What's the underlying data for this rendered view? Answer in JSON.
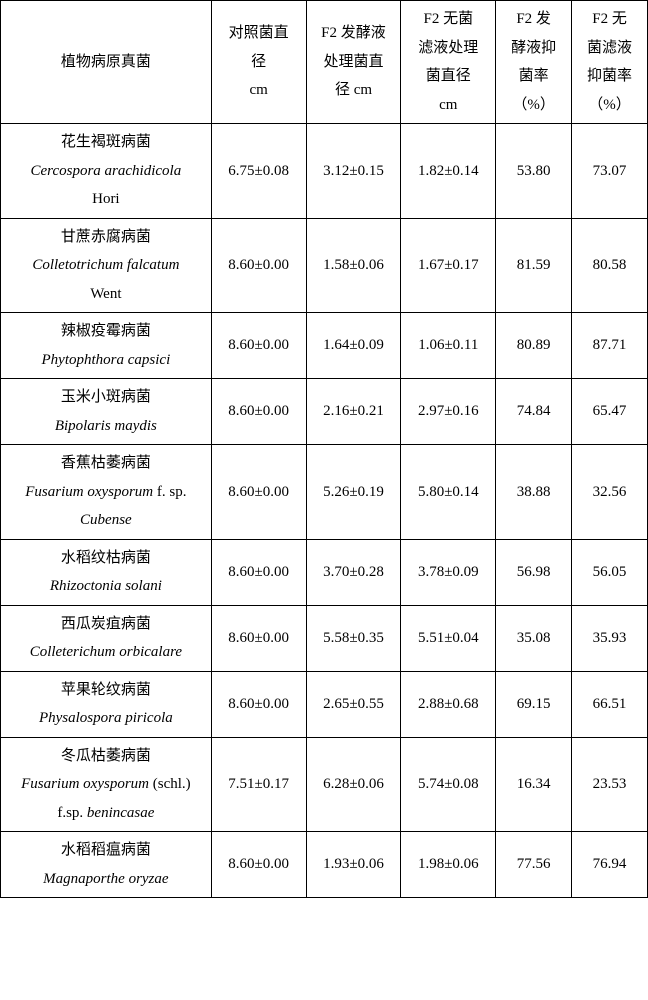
{
  "headers": {
    "name": "植物病原真菌",
    "col1_l1": "对照菌直",
    "col1_l2": "径",
    "col1_l3": "cm",
    "col2_l1": "F2 发酵液",
    "col2_l2": "处理菌直",
    "col2_l3": "径 cm",
    "col3_l1": "F2 无菌",
    "col3_l2": "滤液处理",
    "col3_l3": "菌直径",
    "col3_l4": "cm",
    "col4_l1": "F2 发",
    "col4_l2": "酵液抑",
    "col4_l3": "菌率",
    "col4_l4": "（%）",
    "col5_l1": "F2 无",
    "col5_l2": "菌滤液",
    "col5_l3": "抑菌率",
    "col5_l4": "（%）"
  },
  "rows": [
    {
      "cn": "花生褐斑病菌",
      "latin": "Cercospora arachidicola",
      "tail": "Hori",
      "c1": "6.75±0.08",
      "c2": "3.12±0.15",
      "c3": "1.82±0.14",
      "c4": "53.80",
      "c5": "73.07"
    },
    {
      "cn": "甘蔗赤腐病菌",
      "latin": "Colletotrichum falcatum",
      "tail": "Went",
      "c1": "8.60±0.00",
      "c2": "1.58±0.06",
      "c3": "1.67±0.17",
      "c4": "81.59",
      "c5": "80.58"
    },
    {
      "cn": "辣椒疫霉病菌",
      "latin": "Phytophthora capsici",
      "tail": "",
      "c1": "8.60±0.00",
      "c2": "1.64±0.09",
      "c3": "1.06±0.11",
      "c4": "80.89",
      "c5": "87.71"
    },
    {
      "cn": "玉米小斑病菌",
      "latin": "Bipolaris maydis",
      "tail": "",
      "c1": "8.60±0.00",
      "c2": "2.16±0.21",
      "c3": "2.97±0.16",
      "c4": "74.84",
      "c5": "65.47"
    },
    {
      "cn": "香蕉枯萎病菌",
      "latin_pre": "Fusarium oxysporum",
      "latin_post": " f. sp.",
      "latin2": "Cubense",
      "c1": "8.60±0.00",
      "c2": "5.26±0.19",
      "c3": "5.80±0.14",
      "c4": "38.88",
      "c5": "32.56"
    },
    {
      "cn": "水稻纹枯病菌",
      "latin": "Rhizoctonia solani",
      "tail": "",
      "c1": "8.60±0.00",
      "c2": "3.70±0.28",
      "c3": "3.78±0.09",
      "c4": "56.98",
      "c5": "56.05"
    },
    {
      "cn": "西瓜炭疽病菌",
      "latin": "Colleterichum orbicalare",
      "tail": "",
      "c1": "8.60±0.00",
      "c2": "5.58±0.35",
      "c3": "5.51±0.04",
      "c4": "35.08",
      "c5": "35.93"
    },
    {
      "cn": "苹果轮纹病菌",
      "latin": "Physalospora piricola",
      "tail": "",
      "c1": "8.60±0.00",
      "c2": "2.65±0.55",
      "c3": "2.88±0.68",
      "c4": "69.15",
      "c5": "66.51"
    },
    {
      "cn": "冬瓜枯萎病菌",
      "latin_pre": "Fusarium oxysporum",
      "latin_post": " (schl.)",
      "tail_pre": "f.sp. ",
      "latin2": "benincasae",
      "c1": "7.51±0.17",
      "c2": "6.28±0.06",
      "c3": "5.74±0.08",
      "c4": "16.34",
      "c5": "23.53"
    },
    {
      "cn": "水稻稻瘟病菌",
      "latin": "Magnaporthe oryzae",
      "tail": "",
      "c1": "8.60±0.00",
      "c2": "1.93±0.06",
      "c3": "1.98±0.06",
      "c4": "77.56",
      "c5": "76.94"
    }
  ]
}
